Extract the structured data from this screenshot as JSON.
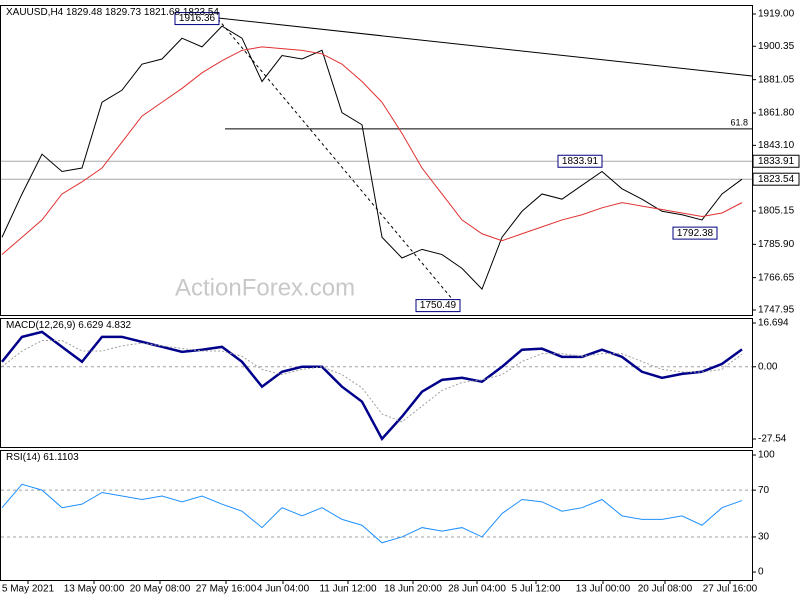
{
  "chart_data": [
    {
      "type": "line",
      "symbol": "XAUUSD,H4",
      "ohlc": [
        1829.48,
        1829.73,
        1821.68,
        1823.54
      ],
      "watermark": "ActionForex.com",
      "ylim": [
        1745.06,
        1924.2
      ],
      "yticks": [
        {
          "value": 1919,
          "label": "1919.00"
        },
        {
          "value": 1900.35,
          "label": "1900.35"
        },
        {
          "value": 1881.05,
          "label": "1881.05"
        },
        {
          "value": 1861.8,
          "label": "1861.80"
        },
        {
          "value": 1843.1,
          "label": "1843.10"
        },
        1805.15,
        {
          "value": 1785.9,
          "label": "1785.90"
        },
        {
          "value": 1766.65,
          "label": "1766.65"
        },
        1747.95
      ],
      "price_lines": [
        1833.91,
        1823.54
      ],
      "fib_levels": [
        {
          "level": 61.8,
          "price": 1852.6
        }
      ],
      "annotations": [
        {
          "x": 10.85,
          "value": 1916.36
        },
        {
          "x": 22.9,
          "value": 1750.49
        },
        {
          "x": 30,
          "value": 1833.91
        },
        {
          "x": 35.75,
          "value": 1792.38
        }
      ],
      "series": [
        {
          "color": "#000000",
          "width": 1,
          "values": [
            1790,
            1815,
            1838,
            1828,
            1830,
            1868,
            1875,
            1890,
            1893,
            1905,
            1900,
            1912,
            1905,
            1880,
            1895,
            1893,
            1898,
            1862,
            1855,
            1790,
            1778,
            1783,
            1780,
            1772,
            1760,
            1790,
            1805,
            1815,
            1812,
            1820,
            1828,
            1818,
            1812,
            1805,
            1803,
            1800,
            1815,
            1823.54
          ]
        },
        {
          "color": "#e03030",
          "width": 1,
          "values": [
            1780,
            1790,
            1800,
            1815,
            1822,
            1830,
            1845,
            1860,
            1868,
            1876,
            1885,
            1892,
            1898,
            1900,
            1899,
            1898,
            1896,
            1890,
            1880,
            1868,
            1850,
            1830,
            1815,
            1800,
            1792,
            1788,
            1792,
            1796,
            1800,
            1803,
            1807,
            1810,
            1808,
            1806,
            1804,
            1802,
            1804,
            1810
          ]
        }
      ]
    },
    {
      "type": "line",
      "label": "MACD(12,26,9)",
      "readings": [
        6.629,
        4.832
      ],
      "ylim": [
        -30.59,
        18.6
      ],
      "yticks": [
        16.694,
        {
          "value": 0,
          "label": "0.00"
        },
        -27.54
      ],
      "levels": [
        0
      ],
      "series": [
        {
          "color": "#00008b",
          "width": 2.5,
          "values": [
            1.9,
            11.4,
            13.3,
            7.6,
            1.9,
            11.4,
            11.4,
            9.5,
            7.6,
            5.7,
            6.5,
            7.6,
            1.9,
            -7.6,
            -1.9,
            0,
            0,
            -7.6,
            -13.3,
            -27.5,
            -19,
            -9.5,
            -5,
            -4.2,
            -5.7,
            0,
            6.5,
            6.9,
            3.8,
            3.8,
            6.5,
            3.8,
            -1.9,
            -4.2,
            -2.7,
            -1.9,
            1.1,
            6.629
          ]
        },
        {
          "color": "#a0a0a0",
          "width": 1,
          "dashed": true,
          "values": [
            0,
            6,
            10,
            10,
            6,
            6,
            8,
            9,
            8,
            7,
            6,
            6,
            4,
            -1,
            -3,
            -1,
            0,
            -3,
            -8,
            -18,
            -21,
            -15,
            -9,
            -6,
            -5,
            -3,
            2,
            5,
            5,
            4,
            5,
            5,
            2,
            -1,
            -2,
            -2,
            -1,
            4.832
          ]
        }
      ]
    },
    {
      "type": "line",
      "label": "RSI(14)",
      "readings": [
        61.1103
      ],
      "ylim": [
        -6.8,
        104.3
      ],
      "yticks": [
        100,
        70,
        30,
        0
      ],
      "levels": [
        70,
        30
      ],
      "series": [
        {
          "color": "#1e90ff",
          "width": 1,
          "values": [
            55,
            75,
            70,
            55,
            58,
            68,
            65,
            62,
            65,
            60,
            65,
            58,
            52,
            38,
            55,
            48,
            55,
            45,
            40,
            25,
            30,
            38,
            35,
            38,
            30,
            50,
            62,
            60,
            52,
            55,
            62,
            48,
            45,
            45,
            48,
            40,
            55,
            61.1103
          ]
        }
      ],
      "xticks": [
        {
          "value": 1.3,
          "label": "5 May 2021"
        },
        {
          "value": 4.6,
          "label": "13 May 00:00"
        },
        {
          "value": 7.9,
          "label": "20 May 08:00"
        },
        {
          "value": 11.2,
          "label": "27 May 16:00"
        },
        {
          "value": 14.05,
          "label": "4 Jun 04:00"
        },
        {
          "value": 17.3,
          "label": "11 Jun 12:00"
        },
        {
          "value": 20.55,
          "label": "18 Jun 20:00"
        },
        {
          "value": 23.75,
          "label": "28 Jun 04:00"
        },
        {
          "value": 26.7,
          "label": "5 Jul 12:00"
        },
        {
          "value": 30.05,
          "label": "13 Jul 00:00"
        },
        {
          "value": 33.15,
          "label": "20 Jul 08:00"
        },
        {
          "value": 36.4,
          "label": "27 Jul 16:00"
        }
      ]
    }
  ]
}
